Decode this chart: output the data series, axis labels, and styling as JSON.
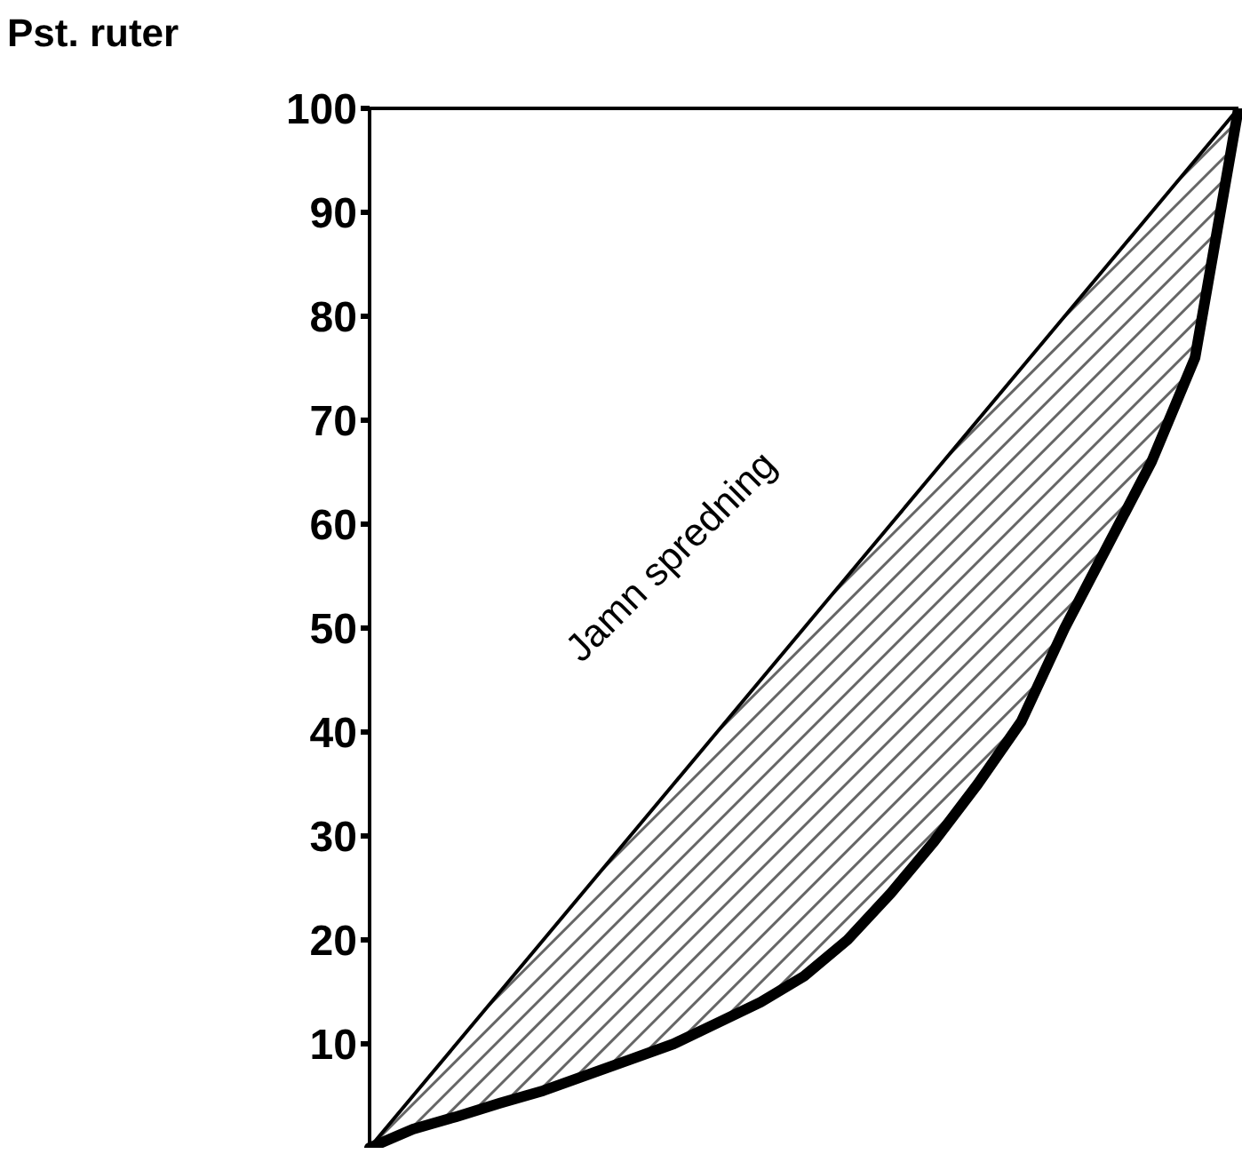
{
  "chart_data": {
    "type": "line",
    "ylabel": "Pst. ruter",
    "categories": [
      null,
      null,
      null,
      null,
      null,
      null,
      null,
      null,
      null,
      null,
      null,
      null,
      null,
      null,
      null,
      null,
      null,
      null,
      null,
      null,
      null
    ],
    "series": [
      {
        "color": "#000000",
        "values": [
          0,
          5,
          10,
          15,
          20,
          25,
          30,
          35,
          40,
          45,
          50,
          55,
          60,
          65,
          70,
          75,
          80,
          85,
          90,
          95,
          100
        ],
        "lower": [
          0,
          1.8,
          3,
          4.3,
          5.5,
          7,
          8.5,
          10,
          12,
          14,
          16.5,
          20,
          24.5,
          29.5,
          35,
          41,
          50,
          58,
          66,
          76,
          100
        ],
        "upper": [
          0,
          5,
          10,
          15,
          20,
          25,
          30,
          35,
          40,
          45,
          50,
          55,
          60,
          65,
          70,
          75,
          80,
          85,
          90,
          95,
          100
        ]
      },
      {
        "color": "#000000",
        "values": [
          0,
          1.8,
          3,
          4.3,
          5.5,
          7,
          8.5,
          10,
          12,
          14,
          16.5,
          20,
          24.5,
          29.5,
          35,
          41,
          50,
          58,
          66,
          76,
          100
        ]
      }
    ],
    "ylim": [
      0,
      100
    ],
    "yticks": [
      10,
      20,
      30,
      40,
      50,
      60,
      70,
      80,
      90,
      100
    ],
    "tick_labels": "y",
    "grid": false,
    "marker": "none",
    "line_style": "solid",
    "annotations": [
      "Jamn spredning"
    ]
  }
}
